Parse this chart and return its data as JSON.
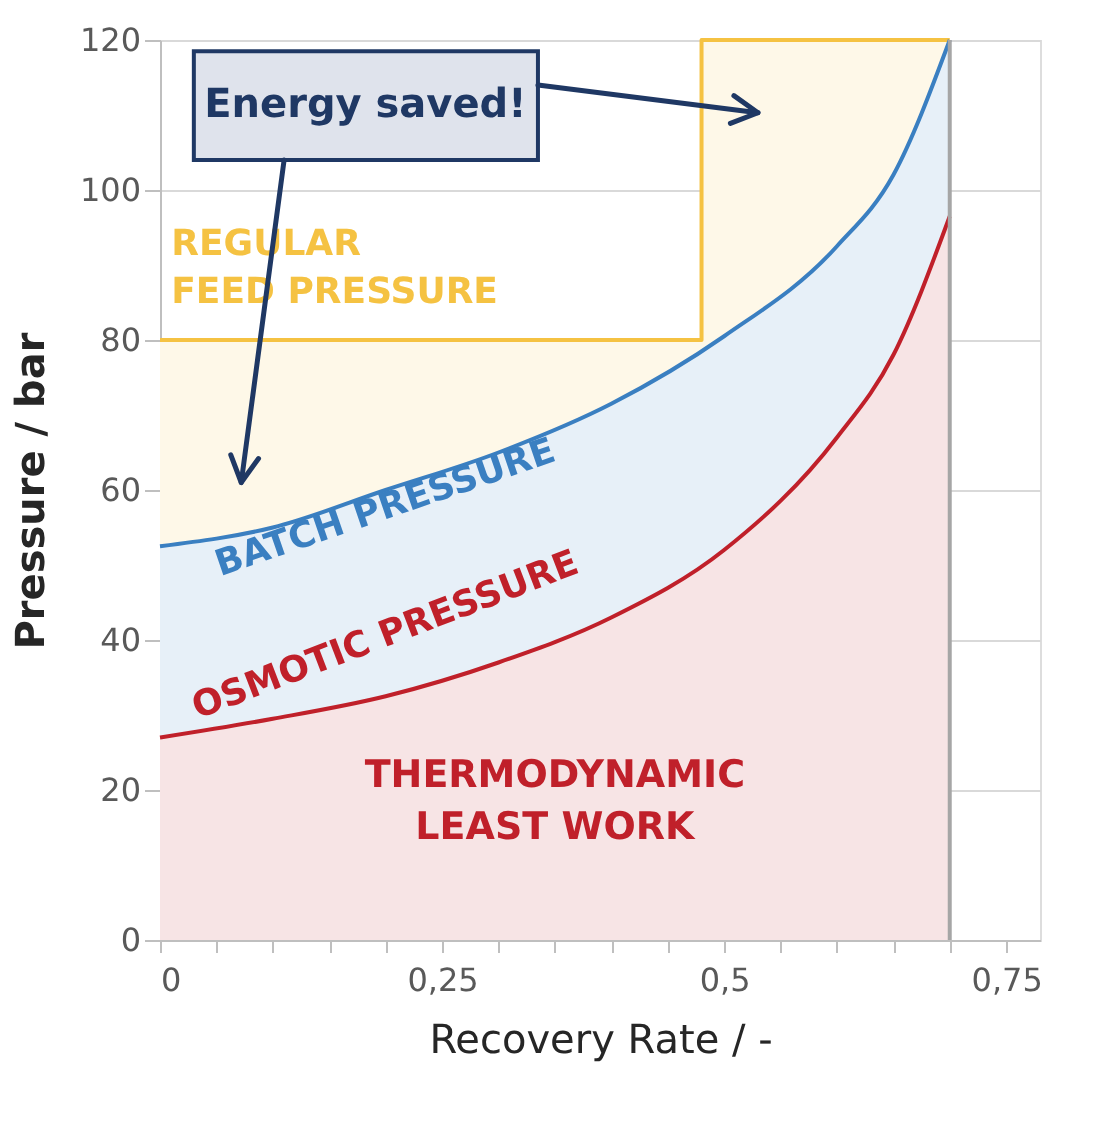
{
  "chart_data": {
    "type": "area",
    "xlabel": "Recovery Rate / -",
    "ylabel": "Pressure / bar",
    "xlim": [
      0,
      0.78
    ],
    "xticks": [
      {
        "value": 0,
        "label": "0"
      },
      {
        "value": 0.05,
        "label": null
      },
      {
        "value": 0.1,
        "label": null
      },
      {
        "value": 0.15,
        "label": null
      },
      {
        "value": 0.2,
        "label": null
      },
      {
        "value": 0.25,
        "label": "0,25"
      },
      {
        "value": 0.3,
        "label": null
      },
      {
        "value": 0.35,
        "label": null
      },
      {
        "value": 0.4,
        "label": null
      },
      {
        "value": 0.45,
        "label": null
      },
      {
        "value": 0.5,
        "label": "0,5"
      },
      {
        "value": 0.55,
        "label": null
      },
      {
        "value": 0.6,
        "label": null
      },
      {
        "value": 0.65,
        "label": null
      },
      {
        "value": 0.7,
        "label": null
      },
      {
        "value": 0.75,
        "label": "0,75"
      }
    ],
    "ylim": [
      0,
      120
    ],
    "yticks": [
      0,
      20,
      40,
      60,
      80,
      100,
      120
    ],
    "grid": "y",
    "series": [
      {
        "name": "REGULAR\nFEED PRESSURE",
        "color": "#f5c242",
        "x": [
          0,
          0.48,
          0.48,
          0.7
        ],
        "values": [
          80,
          80,
          120,
          120
        ]
      },
      {
        "name": "BATCH PRESSURE",
        "color": "#3a7fc1",
        "x": [
          0,
          0.1,
          0.2,
          0.3,
          0.4,
          0.5,
          0.6,
          0.65,
          0.7
        ],
        "values": [
          52.5,
          55,
          60,
          65,
          71.5,
          80.5,
          92.5,
          102,
          120
        ]
      },
      {
        "name": "OSMOTIC PRESSURE",
        "color": "#c0202a",
        "x": [
          0,
          0.1,
          0.2,
          0.3,
          0.4,
          0.5,
          0.6,
          0.65,
          0.7
        ],
        "values": [
          27,
          29.5,
          32.5,
          37,
          43,
          52,
          67,
          78,
          96.5
        ]
      }
    ],
    "ref_lines": [
      {
        "axis": "x",
        "value": 0.7,
        "color": "#a6a6a6"
      }
    ],
    "annotations": [
      "Energy saved!",
      "THERMODYNAMIC\nLEAST WORK"
    ]
  }
}
